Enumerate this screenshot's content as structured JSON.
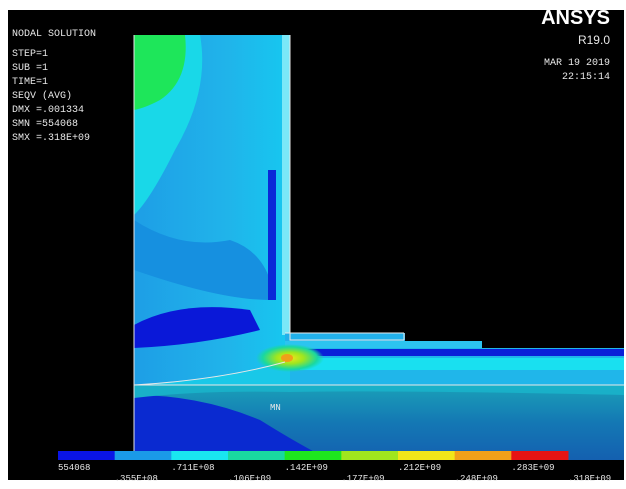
{
  "header": {
    "lines": [
      "NODAL SOLUTION",
      "STEP=1",
      "SUB =1",
      "TIME=1",
      "SEQV     (AVG)",
      "DMX =.001334",
      "SMN =554068",
      "SMX =.318E+09"
    ]
  },
  "brand": {
    "logo": "ANSYS",
    "version": "R19.0",
    "date": "MAR 19 2019",
    "time": "22:15:14"
  },
  "plot": {
    "min_marker": "MN"
  },
  "legend": {
    "colors": [
      "#0a14e6",
      "#1a9ae8",
      "#19e6f0",
      "#19d8a0",
      "#1ee61e",
      "#a0e61e",
      "#f0e619",
      "#f0a019",
      "#e61414"
    ],
    "labels": [
      "554068",
      ".355E+08",
      ".711E+08",
      ".106E+09",
      ".142E+09",
      ".177E+09",
      ".212E+09",
      ".248E+09",
      ".283E+09",
      ".318E+09"
    ]
  }
}
